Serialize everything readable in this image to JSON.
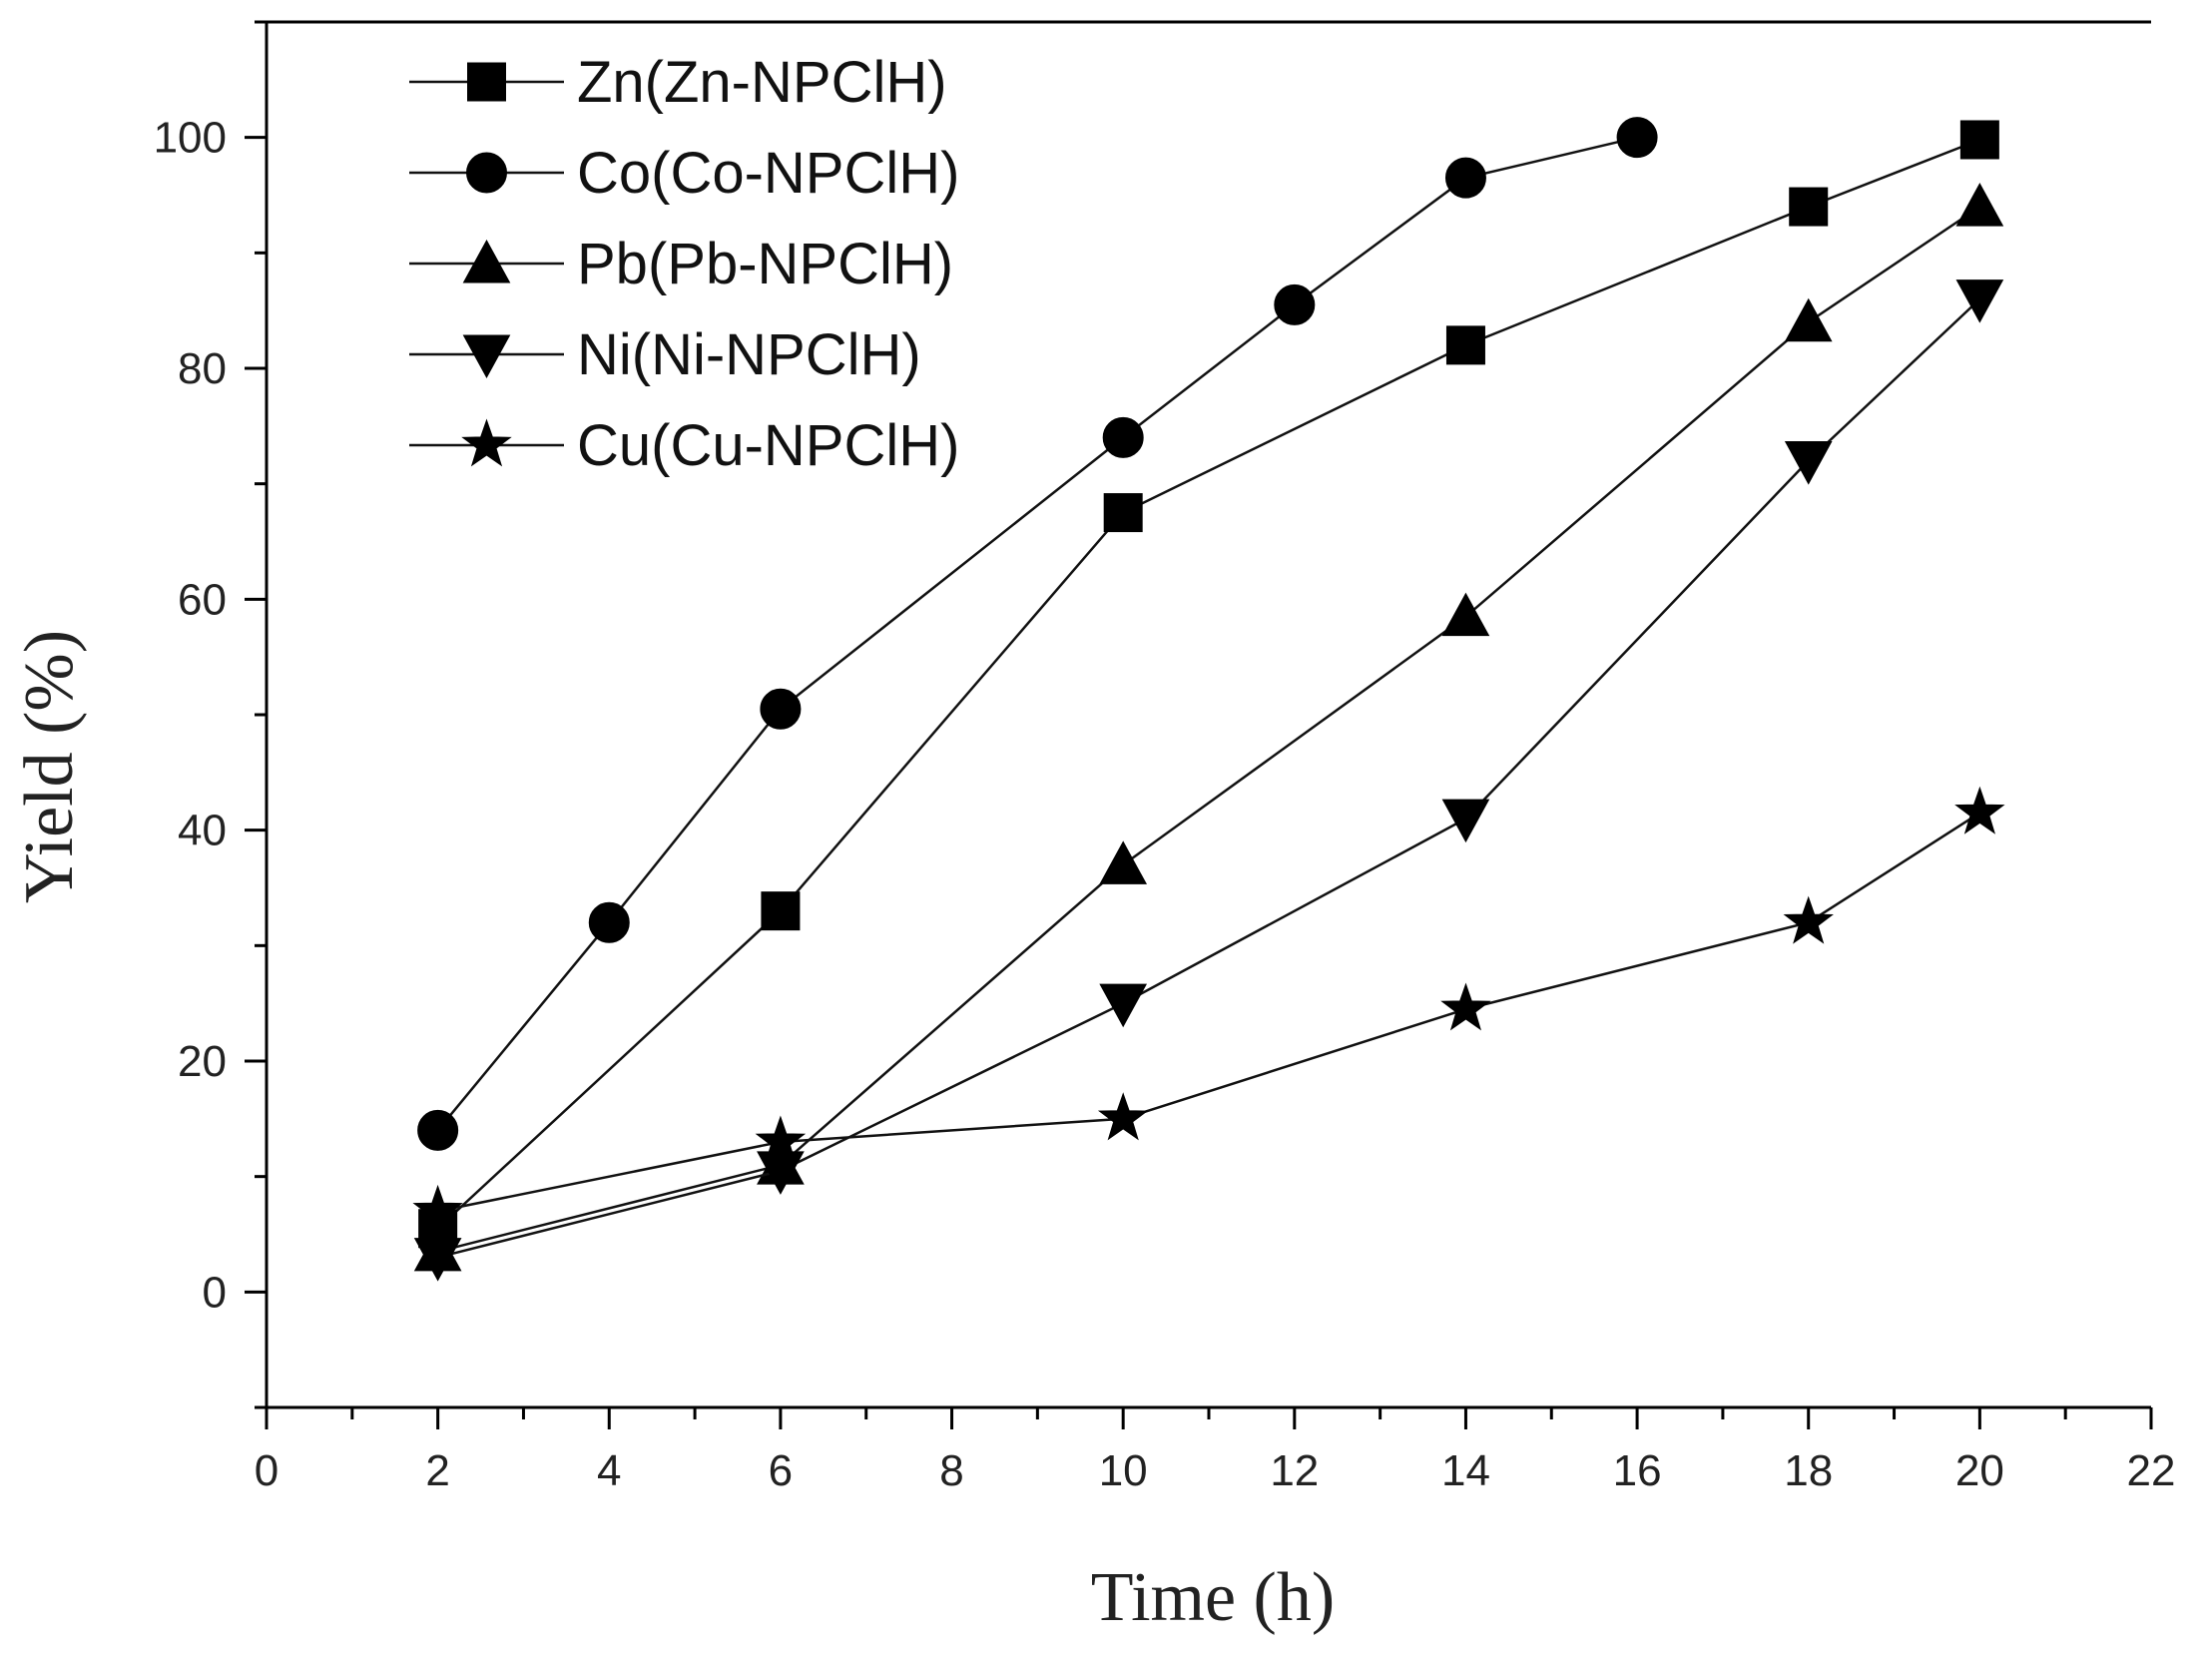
{
  "chart_data": {
    "type": "line",
    "title": "",
    "xlabel": "Time (h)",
    "ylabel": "Yield (%)",
    "xlim": [
      0,
      22
    ],
    "ylim": [
      -10,
      110
    ],
    "xticks": [
      0,
      2,
      4,
      6,
      8,
      10,
      12,
      14,
      16,
      18,
      20,
      22
    ],
    "yticks": [
      0,
      20,
      40,
      60,
      80,
      100
    ],
    "legend_position": "top-left",
    "series": [
      {
        "name": "Zn(Zn-NPClH)",
        "marker": "square",
        "x": [
          2,
          6,
          10,
          14,
          18,
          20
        ],
        "y": [
          5.5,
          33,
          67.5,
          82,
          94,
          99.8
        ]
      },
      {
        "name": "Co(Co-NPClH)",
        "marker": "circle",
        "x": [
          2,
          4,
          6,
          10,
          12,
          14,
          16
        ],
        "y": [
          14,
          32,
          50.5,
          74,
          85.5,
          96.5,
          100
        ]
      },
      {
        "name": "Pb(Pb-NPClH)",
        "marker": "triangle-up",
        "x": [
          2,
          6,
          10,
          14,
          18,
          20
        ],
        "y": [
          3.5,
          11,
          37,
          58.5,
          84,
          94
        ]
      },
      {
        "name": "Ni(Ni-NPClH)",
        "marker": "triangle-down",
        "x": [
          2,
          6,
          10,
          14,
          18,
          20
        ],
        "y": [
          3,
          10.5,
          25,
          41,
          72,
          86
        ]
      },
      {
        "name": "Cu(Cu-NPClH)",
        "marker": "star",
        "x": [
          2,
          6,
          10,
          14,
          18,
          20
        ],
        "y": [
          7,
          13,
          15,
          24.5,
          32,
          41.5
        ]
      }
    ]
  }
}
